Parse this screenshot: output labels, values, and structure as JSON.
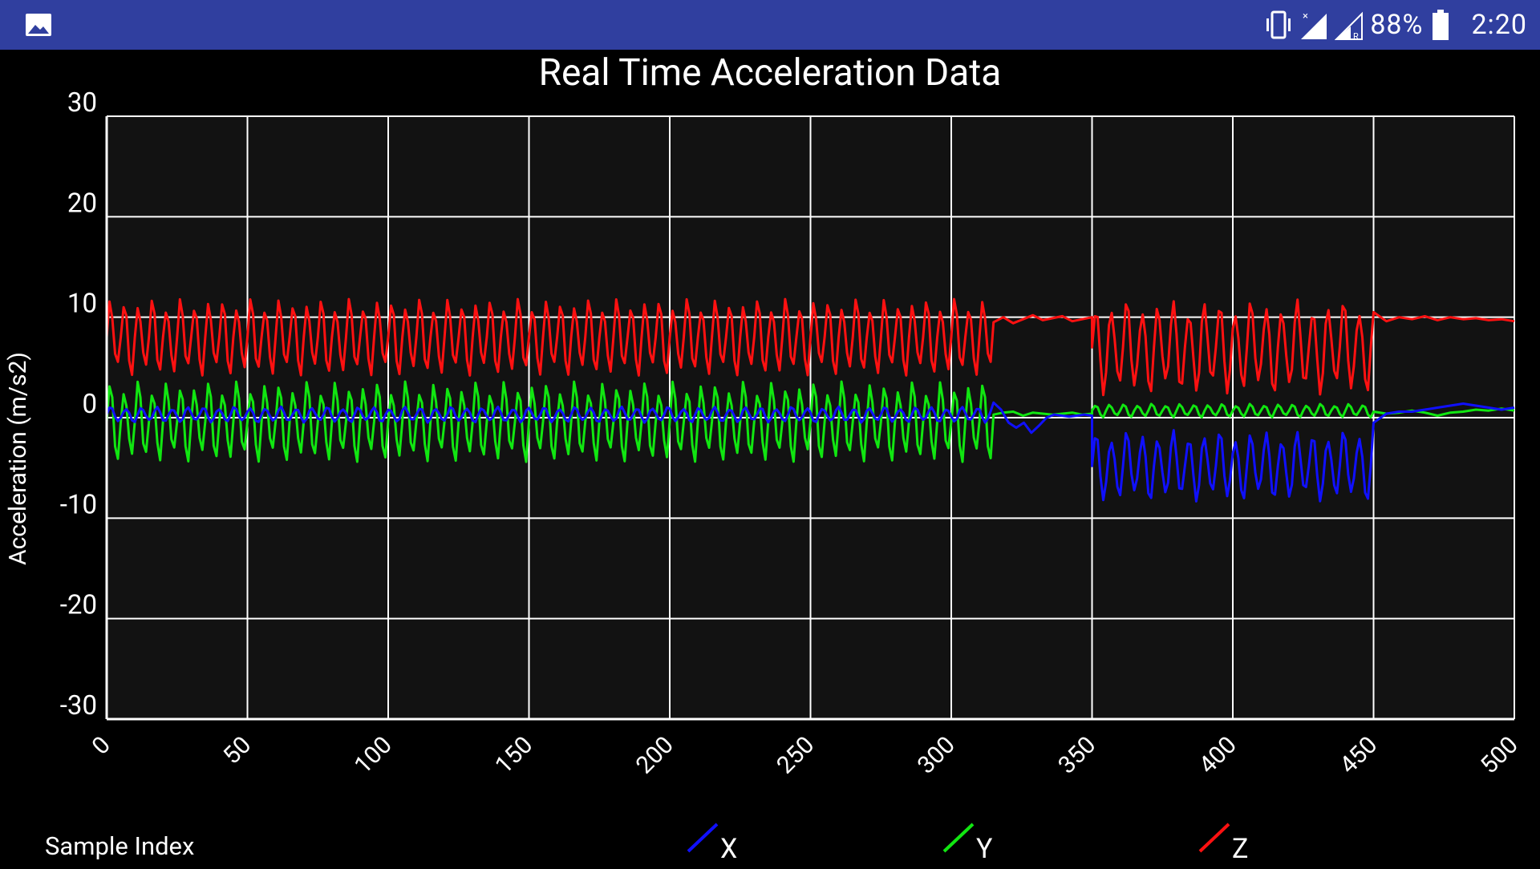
{
  "status_bar": {
    "battery_text": "88%",
    "time": "2:20",
    "icons": [
      "image-icon",
      "vibrate-icon",
      "signal-x-icon",
      "signal-roaming-icon",
      "battery-icon"
    ]
  },
  "chart_data": {
    "type": "line",
    "title": "Real Time Acceleration Data",
    "xlabel": "Sample Index",
    "ylabel": "Acceleration (m/s2)",
    "xlim": [
      0,
      500
    ],
    "ylim": [
      -30,
      30
    ],
    "xticks": [
      "0",
      "50",
      "100",
      "150",
      "200",
      "250",
      "300",
      "350",
      "400",
      "450",
      "500"
    ],
    "yticks": [
      "30",
      "20",
      "10",
      "0",
      "-10",
      "-20",
      "-30"
    ],
    "grid": true,
    "legend_position": "bottom",
    "background": "#121212",
    "series": [
      {
        "name": "X",
        "color": "#1010FF",
        "segments": [
          {
            "x_start": 0,
            "x_end": 315,
            "mode": "osc",
            "center": 0.3,
            "amplitude": 0.8,
            "period": 5.5
          },
          {
            "x_start": 315,
            "x_end": 350,
            "mode": "flat",
            "values": [
              1.5,
              0.8,
              -0.5,
              -1.0,
              -0.5,
              -1.5,
              -0.8,
              0.0,
              0.3,
              0.2,
              0.1,
              0.2,
              0.3,
              0.2
            ]
          },
          {
            "x_start": 350,
            "x_end": 450,
            "mode": "osc",
            "center": -4.8,
            "amplitude": 3.6,
            "period": 5.5
          },
          {
            "x_start": 450,
            "x_end": 500,
            "mode": "flat",
            "values": [
              -0.5,
              0.4,
              0.6,
              0.6,
              0.8,
              1.0,
              1.2,
              1.4,
              1.2,
              1.0,
              0.8,
              1.0
            ]
          }
        ]
      },
      {
        "name": "Y",
        "color": "#11E611",
        "segments": [
          {
            "x_start": 0,
            "x_end": 315,
            "mode": "osc",
            "center": -0.4,
            "amplitude": 4.2,
            "period": 5.0
          },
          {
            "x_start": 315,
            "x_end": 350,
            "mode": "flat",
            "values": [
              0.3,
              0.5,
              0.6,
              0.2,
              0.5,
              0.4,
              0.3,
              0.4,
              0.5,
              0.3,
              0.4
            ]
          },
          {
            "x_start": 350,
            "x_end": 450,
            "mode": "osc",
            "center": 0.7,
            "amplitude": 0.7,
            "period": 5.0
          },
          {
            "x_start": 450,
            "x_end": 500,
            "mode": "flat",
            "values": [
              0.6,
              0.4,
              0.5,
              0.7,
              0.5,
              0.2,
              0.5,
              0.6,
              0.8,
              0.7,
              0.9,
              0.7
            ]
          }
        ]
      },
      {
        "name": "Z",
        "color": "#FF1111",
        "segments": [
          {
            "x_start": 0,
            "x_end": 315,
            "mode": "osc",
            "center": 8.0,
            "amplitude": 4.0,
            "period": 5.0
          },
          {
            "x_start": 315,
            "x_end": 350,
            "mode": "flat",
            "values": [
              9.5,
              10.0,
              9.4,
              9.8,
              10.2,
              9.7,
              9.9,
              10.1,
              9.6,
              9.8,
              10.0
            ]
          },
          {
            "x_start": 350,
            "x_end": 450,
            "mode": "osc",
            "center": 7.0,
            "amplitude": 4.8,
            "period": 5.5
          },
          {
            "x_start": 450,
            "x_end": 500,
            "mode": "flat",
            "values": [
              10.5,
              9.6,
              10.0,
              9.8,
              10.1,
              9.7,
              10.0,
              9.8,
              9.9,
              9.7,
              9.8,
              9.6
            ]
          }
        ]
      }
    ]
  }
}
